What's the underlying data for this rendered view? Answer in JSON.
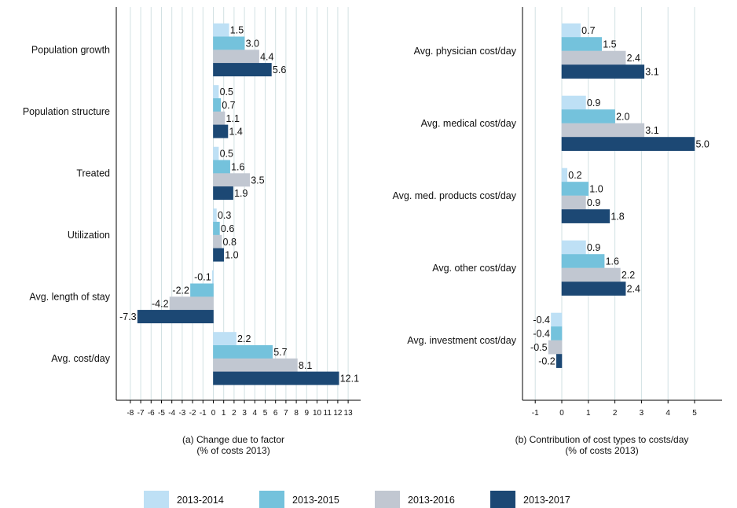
{
  "colors": {
    "2013-2014": "#bee0f5",
    "2013-2015": "#74c2dc",
    "2013-2016": "#c1c7d1",
    "2013-2017": "#1c4874",
    "grid": "#d2e1e3",
    "axis": "#000000"
  },
  "legend": [
    "2013-2014",
    "2013-2015",
    "2013-2016",
    "2013-2017"
  ],
  "chart_data": [
    {
      "type": "bar",
      "orientation": "horizontal",
      "title": "(a) Change due to factor",
      "xlabel": "(a) Change due to factor",
      "xlabel_line2": "(% of costs 2013)",
      "categories": [
        "Population growth",
        "Population structure",
        "Treated",
        "Utilization",
        "Avg. length of stay",
        "Avg. cost/day"
      ],
      "series": [
        {
          "name": "2013-2014",
          "values": [
            1.5,
            0.5,
            0.5,
            0.3,
            -0.1,
            2.2
          ]
        },
        {
          "name": "2013-2015",
          "values": [
            3.0,
            0.7,
            1.6,
            0.6,
            -2.2,
            5.7
          ]
        },
        {
          "name": "2013-2016",
          "values": [
            4.4,
            1.1,
            3.5,
            0.8,
            -4.2,
            8.1
          ]
        },
        {
          "name": "2013-2017",
          "values": [
            5.6,
            1.4,
            1.9,
            1.0,
            -7.3,
            12.1
          ]
        }
      ],
      "xlim": [
        -9,
        14
      ],
      "ticks": [
        -8,
        -7,
        -6,
        -5,
        -4,
        -3,
        -2,
        -1,
        0,
        1,
        2,
        3,
        4,
        5,
        6,
        7,
        8,
        9,
        10,
        11,
        12,
        13
      ],
      "grid": true,
      "legend_position": "bottom"
    },
    {
      "type": "bar",
      "orientation": "horizontal",
      "title": "(b) Contribution of cost types to costs/day",
      "xlabel": "(b) Contribution of cost types to costs/day",
      "xlabel_line2": "(% of costs 2013)",
      "categories": [
        "Avg. physician cost/day",
        "Avg. medical cost/day",
        "Avg. med. products cost/day",
        "Avg. other cost/day",
        "Avg. investment cost/day"
      ],
      "series": [
        {
          "name": "2013-2014",
          "values": [
            0.7,
            0.9,
            0.2,
            0.9,
            -0.4
          ]
        },
        {
          "name": "2013-2015",
          "values": [
            1.5,
            2.0,
            1.0,
            1.6,
            -0.4
          ]
        },
        {
          "name": "2013-2016",
          "values": [
            2.4,
            3.1,
            0.9,
            2.2,
            -0.5
          ]
        },
        {
          "name": "2013-2017",
          "values": [
            3.1,
            5.0,
            1.8,
            2.4,
            -0.2
          ]
        }
      ],
      "xlim": [
        -2,
        6
      ],
      "ticks": [
        -1,
        0,
        1,
        2,
        3,
        4,
        5
      ],
      "grid": true,
      "legend_position": "bottom"
    }
  ]
}
